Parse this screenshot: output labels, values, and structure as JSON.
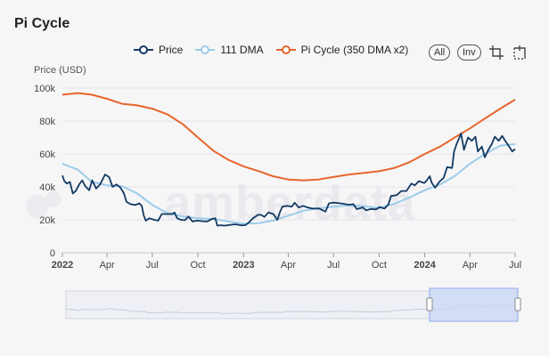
{
  "page": {
    "title": "Pi Cycle"
  },
  "legend": {
    "price": "Price",
    "dma111": "111 DMA",
    "picycle": "Pi Cycle (350 DMA x2)"
  },
  "controls": {
    "all_label": "All",
    "inv_label": "Inv"
  },
  "icons": {
    "crop": "crop-icon",
    "reset": "reset-zoom-icon"
  },
  "colors": {
    "price": "#123a63",
    "dma111": "#9ccbea",
    "picycle": "#e8642c",
    "grid": "#e2e3ee",
    "navigator_fill": "#c9d8f6",
    "navigator_border": "#8fa9ea"
  },
  "chart_data": {
    "type": "line",
    "ylabel": "Price (USD)",
    "ylim": [
      0,
      100000
    ],
    "yticks": [
      0,
      20000,
      40000,
      60000,
      80000,
      100000
    ],
    "ytick_labels": [
      "0",
      "20k",
      "40k",
      "60k",
      "80k",
      "100k"
    ],
    "xlim": [
      "2022-01-01",
      "2024-07-01"
    ],
    "xticks": [
      "2022-01-01",
      "2022-04-01",
      "2022-07-01",
      "2022-10-01",
      "2023-01-01",
      "2023-04-01",
      "2023-07-01",
      "2023-10-01",
      "2024-01-01",
      "2024-04-01",
      "2024-07-01"
    ],
    "xtick_labels": [
      "2022",
      "Apr",
      "Jul",
      "Oct",
      "2023",
      "Apr",
      "Jul",
      "Oct",
      "2024",
      "Apr",
      "Jul"
    ],
    "xtick_bold": [
      true,
      false,
      false,
      false,
      true,
      false,
      false,
      false,
      true,
      false,
      false
    ],
    "grid": true,
    "legend_position": "top-right",
    "watermark": "amberdata",
    "series": [
      {
        "name": "Price",
        "key": "price",
        "points": [
          [
            "2022-01-01",
            47000
          ],
          [
            "2022-01-05",
            43500
          ],
          [
            "2022-01-10",
            42000
          ],
          [
            "2022-01-16",
            43000
          ],
          [
            "2022-01-22",
            36000
          ],
          [
            "2022-01-28",
            37500
          ],
          [
            "2022-02-04",
            41500
          ],
          [
            "2022-02-10",
            44000
          ],
          [
            "2022-02-16",
            40500
          ],
          [
            "2022-02-24",
            38000
          ],
          [
            "2022-03-02",
            44000
          ],
          [
            "2022-03-10",
            39000
          ],
          [
            "2022-03-18",
            41500
          ],
          [
            "2022-03-28",
            47500
          ],
          [
            "2022-04-05",
            46000
          ],
          [
            "2022-04-12",
            40000
          ],
          [
            "2022-04-20",
            41500
          ],
          [
            "2022-04-28",
            39500
          ],
          [
            "2022-05-05",
            36000
          ],
          [
            "2022-05-10",
            31000
          ],
          [
            "2022-05-18",
            29500
          ],
          [
            "2022-05-28",
            29000
          ],
          [
            "2022-06-05",
            30000
          ],
          [
            "2022-06-10",
            28500
          ],
          [
            "2022-06-14",
            22500
          ],
          [
            "2022-06-18",
            19500
          ],
          [
            "2022-06-25",
            21000
          ],
          [
            "2022-07-05",
            20000
          ],
          [
            "2022-07-13",
            19500
          ],
          [
            "2022-07-20",
            23500
          ],
          [
            "2022-07-30",
            23500
          ],
          [
            "2022-08-10",
            23500
          ],
          [
            "2022-08-15",
            24500
          ],
          [
            "2022-08-20",
            21000
          ],
          [
            "2022-08-28",
            20000
          ],
          [
            "2022-09-05",
            19800
          ],
          [
            "2022-09-12",
            22000
          ],
          [
            "2022-09-20",
            19000
          ],
          [
            "2022-09-30",
            19500
          ],
          [
            "2022-10-10",
            19200
          ],
          [
            "2022-10-20",
            19000
          ],
          [
            "2022-10-30",
            20600
          ],
          [
            "2022-11-05",
            21000
          ],
          [
            "2022-11-09",
            16500
          ],
          [
            "2022-11-15",
            16700
          ],
          [
            "2022-11-25",
            16500
          ],
          [
            "2022-12-05",
            17000
          ],
          [
            "2022-12-15",
            17300
          ],
          [
            "2022-12-28",
            16600
          ],
          [
            "2023-01-05",
            16800
          ],
          [
            "2023-01-12",
            18500
          ],
          [
            "2023-01-20",
            21000
          ],
          [
            "2023-01-30",
            23000
          ],
          [
            "2023-02-05",
            23000
          ],
          [
            "2023-02-12",
            21800
          ],
          [
            "2023-02-20",
            24500
          ],
          [
            "2023-03-02",
            23500
          ],
          [
            "2023-03-10",
            20000
          ],
          [
            "2023-03-15",
            24500
          ],
          [
            "2023-03-20",
            28000
          ],
          [
            "2023-03-30",
            28500
          ],
          [
            "2023-04-08",
            28000
          ],
          [
            "2023-04-14",
            30400
          ],
          [
            "2023-04-22",
            27500
          ],
          [
            "2023-05-01",
            28500
          ],
          [
            "2023-05-10",
            27500
          ],
          [
            "2023-05-20",
            26800
          ],
          [
            "2023-06-01",
            27000
          ],
          [
            "2023-06-10",
            25800
          ],
          [
            "2023-06-15",
            25000
          ],
          [
            "2023-06-22",
            30000
          ],
          [
            "2023-07-01",
            30500
          ],
          [
            "2023-07-10",
            30200
          ],
          [
            "2023-07-20",
            29800
          ],
          [
            "2023-08-01",
            29200
          ],
          [
            "2023-08-10",
            29500
          ],
          [
            "2023-08-17",
            26500
          ],
          [
            "2023-08-29",
            27500
          ],
          [
            "2023-09-05",
            25800
          ],
          [
            "2023-09-15",
            26600
          ],
          [
            "2023-09-25",
            26300
          ],
          [
            "2023-10-02",
            27800
          ],
          [
            "2023-10-12",
            26800
          ],
          [
            "2023-10-20",
            29500
          ],
          [
            "2023-10-25",
            34500
          ],
          [
            "2023-11-05",
            35000
          ],
          [
            "2023-11-15",
            37500
          ],
          [
            "2023-11-25",
            37500
          ],
          [
            "2023-12-05",
            42000
          ],
          [
            "2023-12-12",
            41000
          ],
          [
            "2023-12-20",
            43500
          ],
          [
            "2023-12-31",
            42400
          ],
          [
            "2024-01-05",
            44000
          ],
          [
            "2024-01-11",
            46500
          ],
          [
            "2024-01-15",
            42500
          ],
          [
            "2024-01-22",
            39500
          ],
          [
            "2024-01-30",
            43000
          ],
          [
            "2024-02-08",
            45500
          ],
          [
            "2024-02-15",
            52000
          ],
          [
            "2024-02-25",
            51500
          ],
          [
            "2024-02-29",
            61500
          ],
          [
            "2024-03-05",
            66000
          ],
          [
            "2024-03-10",
            69500
          ],
          [
            "2024-03-14",
            72500
          ],
          [
            "2024-03-20",
            62500
          ],
          [
            "2024-03-28",
            70000
          ],
          [
            "2024-04-05",
            68000
          ],
          [
            "2024-04-12",
            70500
          ],
          [
            "2024-04-17",
            61500
          ],
          [
            "2024-04-25",
            64500
          ],
          [
            "2024-05-01",
            58000
          ],
          [
            "2024-05-08",
            62500
          ],
          [
            "2024-05-15",
            66000
          ],
          [
            "2024-05-21",
            70500
          ],
          [
            "2024-05-29",
            68000
          ],
          [
            "2024-06-05",
            71000
          ],
          [
            "2024-06-12",
            67500
          ],
          [
            "2024-06-18",
            65000
          ],
          [
            "2024-06-25",
            61500
          ],
          [
            "2024-07-01",
            63000
          ]
        ]
      },
      {
        "name": "111 DMA",
        "key": "dma111",
        "points": [
          [
            "2022-01-01",
            54000
          ],
          [
            "2022-02-01",
            50500
          ],
          [
            "2022-03-01",
            43000
          ],
          [
            "2022-04-01",
            41000
          ],
          [
            "2022-05-01",
            40500
          ],
          [
            "2022-06-01",
            36000
          ],
          [
            "2022-07-01",
            29000
          ],
          [
            "2022-08-01",
            24000
          ],
          [
            "2022-09-01",
            22000
          ],
          [
            "2022-10-01",
            21000
          ],
          [
            "2022-11-01",
            20500
          ],
          [
            "2022-12-01",
            19000
          ],
          [
            "2023-01-01",
            17700
          ],
          [
            "2023-02-01",
            18000
          ],
          [
            "2023-03-01",
            19500
          ],
          [
            "2023-04-01",
            22500
          ],
          [
            "2023-05-01",
            25500
          ],
          [
            "2023-06-01",
            27000
          ],
          [
            "2023-07-01",
            28000
          ],
          [
            "2023-08-01",
            28800
          ],
          [
            "2023-09-01",
            28300
          ],
          [
            "2023-10-01",
            27200
          ],
          [
            "2023-11-01",
            29800
          ],
          [
            "2023-12-01",
            33500
          ],
          [
            "2024-01-01",
            38000
          ],
          [
            "2024-02-01",
            41500
          ],
          [
            "2024-03-01",
            46500
          ],
          [
            "2024-04-01",
            54000
          ],
          [
            "2024-05-01",
            60000
          ],
          [
            "2024-06-01",
            65000
          ],
          [
            "2024-07-01",
            66000
          ]
        ]
      },
      {
        "name": "Pi Cycle (350 DMA x2)",
        "key": "picycle",
        "points": [
          [
            "2022-01-01",
            96000
          ],
          [
            "2022-02-01",
            97000
          ],
          [
            "2022-03-01",
            96000
          ],
          [
            "2022-04-01",
            93500
          ],
          [
            "2022-05-01",
            90500
          ],
          [
            "2022-06-01",
            89500
          ],
          [
            "2022-07-01",
            87500
          ],
          [
            "2022-08-01",
            84000
          ],
          [
            "2022-09-01",
            78000
          ],
          [
            "2022-10-01",
            70000
          ],
          [
            "2022-11-01",
            62000
          ],
          [
            "2022-12-01",
            56500
          ],
          [
            "2023-01-01",
            52500
          ],
          [
            "2023-02-01",
            49500
          ],
          [
            "2023-03-01",
            46500
          ],
          [
            "2023-04-01",
            44500
          ],
          [
            "2023-05-01",
            44000
          ],
          [
            "2023-06-01",
            44500
          ],
          [
            "2023-07-01",
            46000
          ],
          [
            "2023-08-01",
            47500
          ],
          [
            "2023-09-01",
            48500
          ],
          [
            "2023-10-01",
            49500
          ],
          [
            "2023-11-01",
            51500
          ],
          [
            "2023-12-01",
            55000
          ],
          [
            "2024-01-01",
            60000
          ],
          [
            "2024-02-01",
            64500
          ],
          [
            "2024-03-01",
            70000
          ],
          [
            "2024-04-01",
            75500
          ],
          [
            "2024-05-01",
            81500
          ],
          [
            "2024-06-01",
            87500
          ],
          [
            "2024-07-01",
            93000
          ]
        ]
      }
    ],
    "navigator": {
      "range_start": "2022-01-01",
      "range_end": "2024-07-01"
    }
  }
}
